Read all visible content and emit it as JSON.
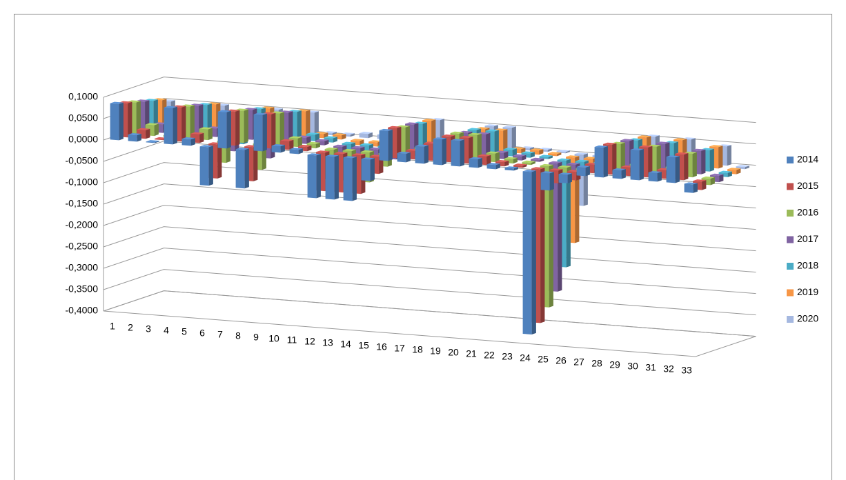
{
  "chart_data": {
    "type": "bar3d",
    "categories": [
      "1",
      "2",
      "3",
      "4",
      "5",
      "6",
      "7",
      "8",
      "9",
      "10",
      "11",
      "12",
      "13",
      "14",
      "15",
      "16",
      "17",
      "18",
      "19",
      "20",
      "21",
      "22",
      "23",
      "24",
      "25",
      "26",
      "27",
      "28",
      "29",
      "30",
      "31",
      "32",
      "33"
    ],
    "series": [
      {
        "name": "2014",
        "color": "#4f81bd",
        "values": [
          0.085,
          0.015,
          0.002,
          0.085,
          0.015,
          -0.09,
          0.085,
          -0.09,
          0.085,
          0.015,
          0.01,
          -0.1,
          -0.1,
          -0.1,
          -0.05,
          0.07,
          0.02,
          0.04,
          0.06,
          0.06,
          0.02,
          0.01,
          0.005,
          -0.38,
          -0.04,
          -0.02,
          0.02,
          0.07,
          0.02,
          0.07,
          0.02,
          0.06,
          -0.02
        ]
      },
      {
        "name": "2015",
        "color": "#c0504d",
        "values": [
          0.08,
          0.02,
          0.002,
          0.08,
          0.02,
          -0.08,
          0.08,
          -0.08,
          0.08,
          0.02,
          0.01,
          -0.09,
          -0.09,
          -0.09,
          -0.04,
          0.07,
          0.02,
          0.04,
          0.06,
          0.06,
          0.02,
          0.01,
          0.005,
          -0.36,
          -0.03,
          -0.02,
          0.02,
          0.07,
          0.02,
          0.07,
          0.02,
          0.06,
          -0.02
        ]
      },
      {
        "name": "2016",
        "color": "#9bbb59",
        "values": [
          0.075,
          0.025,
          0.003,
          0.075,
          0.025,
          -0.05,
          0.075,
          -0.06,
          0.075,
          0.02,
          0.01,
          -0.07,
          -0.07,
          -0.07,
          -0.03,
          0.065,
          0.02,
          0.035,
          0.06,
          0.06,
          0.02,
          0.01,
          0.005,
          -0.33,
          -0.03,
          -0.015,
          0.015,
          0.065,
          0.02,
          0.065,
          0.02,
          0.055,
          -0.015
        ]
      },
      {
        "name": "2017",
        "color": "#8064a2",
        "values": [
          0.07,
          0.02,
          0.003,
          0.07,
          0.02,
          -0.03,
          0.07,
          -0.04,
          0.07,
          0.015,
          0.01,
          -0.05,
          -0.05,
          -0.05,
          -0.02,
          0.065,
          0.02,
          0.035,
          0.055,
          0.055,
          0.015,
          0.01,
          0.005,
          -0.3,
          -0.02,
          -0.015,
          0.015,
          0.065,
          0.015,
          0.065,
          0.015,
          0.055,
          -0.015
        ]
      },
      {
        "name": "2018",
        "color": "#4bacc6",
        "values": [
          0.065,
          0.015,
          0.003,
          0.065,
          0.015,
          -0.02,
          0.065,
          -0.02,
          0.065,
          0.015,
          0.01,
          -0.03,
          -0.03,
          -0.03,
          -0.015,
          0.06,
          0.015,
          0.03,
          0.055,
          0.055,
          0.015,
          0.01,
          0.005,
          -0.25,
          -0.02,
          -0.01,
          0.015,
          0.06,
          0.015,
          0.06,
          0.015,
          0.05,
          -0.01
        ]
      },
      {
        "name": "2019",
        "color": "#f79646",
        "values": [
          0.06,
          0.01,
          0.002,
          0.06,
          0.01,
          -0.01,
          0.06,
          -0.01,
          0.06,
          0.01,
          0.01,
          -0.01,
          -0.01,
          -0.01,
          -0.01,
          0.06,
          0.01,
          0.03,
          0.05,
          0.05,
          0.01,
          0.01,
          0.005,
          -0.2,
          -0.015,
          -0.01,
          0.01,
          0.06,
          0.01,
          0.06,
          0.01,
          0.05,
          -0.01
        ]
      },
      {
        "name": "2020",
        "color": "#a5b8e0",
        "values": [
          0.05,
          0.005,
          0.002,
          0.05,
          0.005,
          0.005,
          0.05,
          0.005,
          0.05,
          0.005,
          0.005,
          0.01,
          0.01,
          0.01,
          -0.005,
          0.055,
          0.005,
          0.025,
          0.05,
          0.05,
          0.005,
          0.005,
          0.003,
          -0.12,
          -0.01,
          -0.005,
          0.005,
          0.055,
          0.005,
          0.055,
          0.005,
          0.045,
          -0.005
        ]
      }
    ],
    "ylim": [
      -0.4,
      0.1
    ],
    "yticks": [
      {
        "value": 0.1,
        "label": "0,1000"
      },
      {
        "value": 0.05,
        "label": "0,0500"
      },
      {
        "value": 0,
        "label": "0,0000"
      },
      {
        "value": -0.05,
        "label": "-0,0500"
      },
      {
        "value": -0.1,
        "label": "-0,1000"
      },
      {
        "value": -0.15,
        "label": "-0,1500"
      },
      {
        "value": -0.2,
        "label": "-0,2000"
      },
      {
        "value": -0.25,
        "label": "-0,2500"
      },
      {
        "value": -0.3,
        "label": "-0,3000"
      },
      {
        "value": -0.35,
        "label": "-0,3500"
      },
      {
        "value": -0.4,
        "label": "-0,4000"
      }
    ],
    "grid": true,
    "legend": "right"
  }
}
